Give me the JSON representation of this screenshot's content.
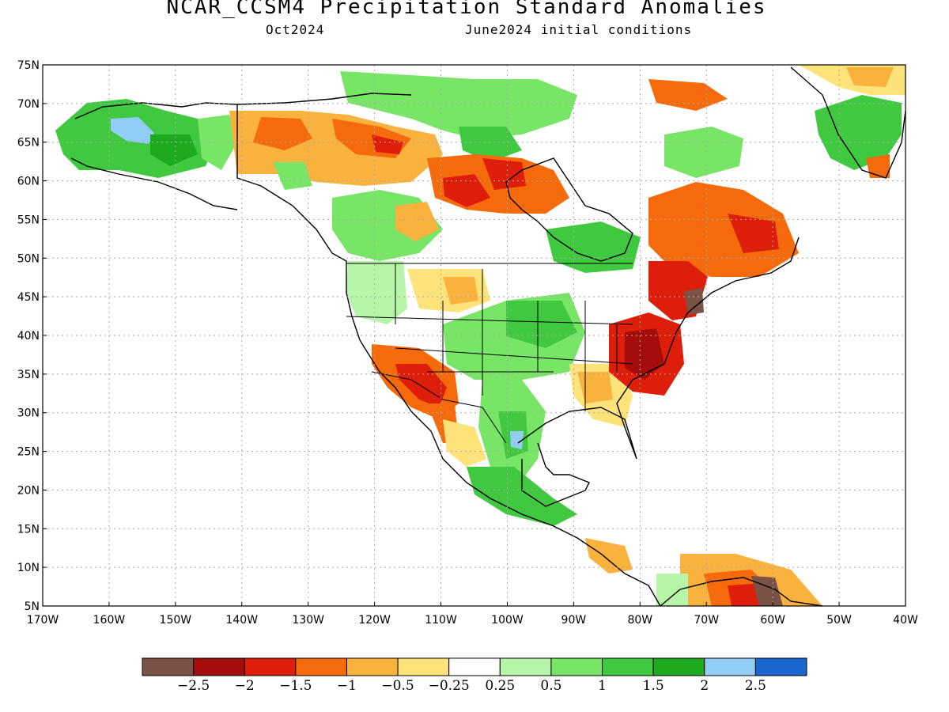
{
  "title": "NCAR_CCSM4 Precipitation Standard Anomalies",
  "subtitle_left": "Oct2024",
  "subtitle_right": "June2024 initial conditions",
  "lat_labels": [
    "75N",
    "70N",
    "65N",
    "60N",
    "55N",
    "50N",
    "45N",
    "40N",
    "35N",
    "30N",
    "25N",
    "20N",
    "15N",
    "10N",
    "5N"
  ],
  "lon_labels": [
    "170W",
    "160W",
    "150W",
    "140W",
    "130W",
    "120W",
    "110W",
    "100W",
    "90W",
    "80W",
    "70W",
    "60W",
    "50W",
    "40W"
  ],
  "colorbar": {
    "colors": [
      "#7b5246",
      "#a50d0d",
      "#dc1e0a",
      "#f56a0a",
      "#f9b23d",
      "#fde37a",
      "#ffffff",
      "#b7f5a8",
      "#78e567",
      "#40c840",
      "#1eaa1e",
      "#92cdf5",
      "#1a66d0"
    ],
    "labels": [
      "-2.5",
      "-2",
      "-1.5",
      "-1",
      "-0.5",
      "-0.25",
      "0.25",
      "0.5",
      "1",
      "1.5",
      "2",
      "2.5"
    ]
  },
  "colors": {
    "land_neutral": "#ffffff",
    "border": "#000000",
    "grid": "#aaaaaa"
  }
}
